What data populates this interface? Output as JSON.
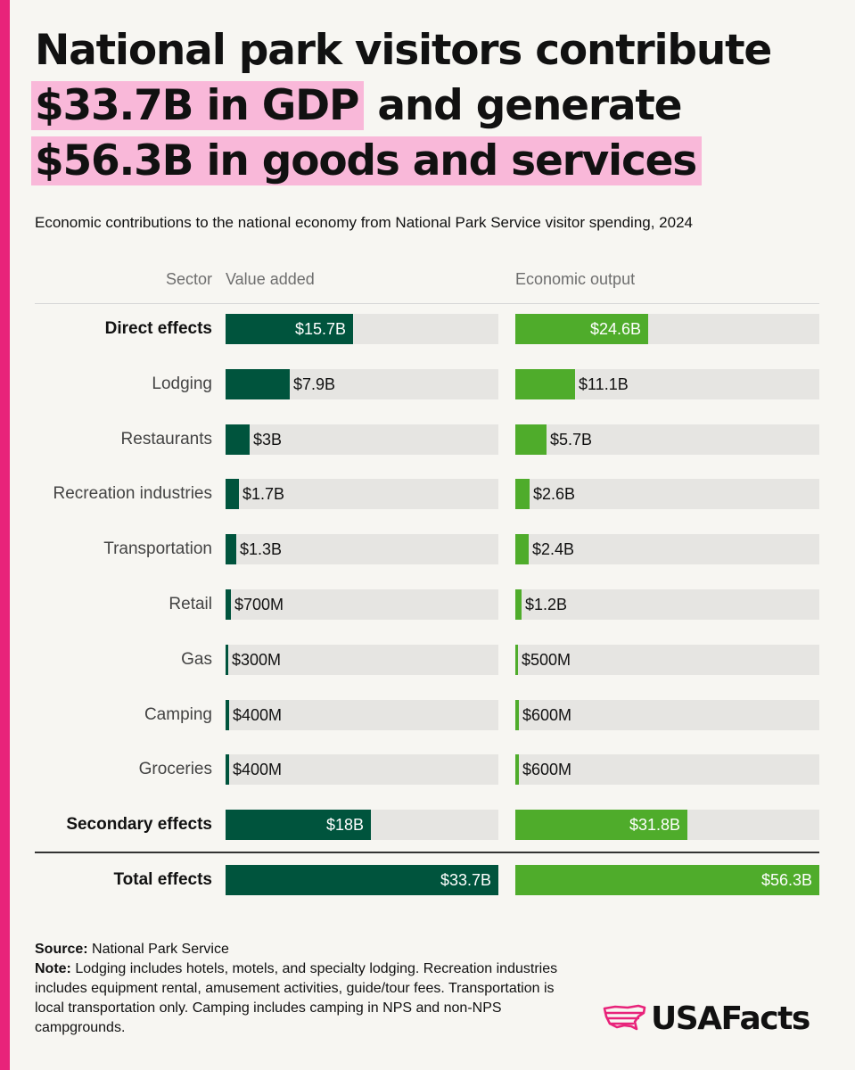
{
  "title": {
    "line1": "National park visitors contribute",
    "line2_highlight": "$33.7B in GDP",
    "line2_rest": " and generate",
    "line3_highlight": "$56.3B in goods and services"
  },
  "subtitle": "Economic contributions to the national economy from National Park Service visitor spending, 2024",
  "colors": {
    "accent": "#e8237a",
    "highlight": "#f9b8d9",
    "value_added": "#00543d",
    "economic_output": "#4fac2b",
    "track": "#e6e5e2"
  },
  "chart_data": {
    "type": "bar",
    "orientation": "horizontal",
    "headers": {
      "sector": "Sector",
      "value_added": "Value added",
      "economic_output": "Economic output"
    },
    "units": "billions of US dollars",
    "categories": [
      "Direct effects",
      "Lodging",
      "Restaurants",
      "Recreation industries",
      "Transportation",
      "Retail",
      "Gas",
      "Camping",
      "Groceries",
      "Secondary effects",
      "Total effects"
    ],
    "bold_categories": [
      "Direct effects",
      "Secondary effects",
      "Total effects"
    ],
    "series": [
      {
        "name": "Value added",
        "xlim": [
          0,
          33.7
        ],
        "values": [
          15.7,
          7.9,
          3.0,
          1.7,
          1.3,
          0.7,
          0.3,
          0.4,
          0.4,
          18.0,
          33.7
        ],
        "labels": [
          "$15.7B",
          "$7.9B",
          "$3B",
          "$1.7B",
          "$1.3B",
          "$700M",
          "$300M",
          "$400M",
          "$400M",
          "$18B",
          "$33.7B"
        ]
      },
      {
        "name": "Economic output",
        "xlim": [
          0,
          56.3
        ],
        "values": [
          24.6,
          11.1,
          5.7,
          2.6,
          2.4,
          1.2,
          0.5,
          0.6,
          0.6,
          31.8,
          56.3
        ],
        "labels": [
          "$24.6B",
          "$11.1B",
          "$5.7B",
          "$2.6B",
          "$2.4B",
          "$1.2B",
          "$500M",
          "$600M",
          "$600M",
          "$31.8B",
          "$56.3B"
        ]
      }
    ]
  },
  "footer": {
    "source_label": "Source:",
    "source_text": " National Park Service",
    "note_label": "Note:",
    "note_text": " Lodging includes hotels, motels, and specialty lodging. Recreation industries includes equipment rental, amusement activities, guide/tour fees. Transportation is local transportation only. Camping includes camping in NPS and non-NPS campgrounds."
  },
  "logo": {
    "text": "USAFacts",
    "icon": "usa-map-icon"
  }
}
